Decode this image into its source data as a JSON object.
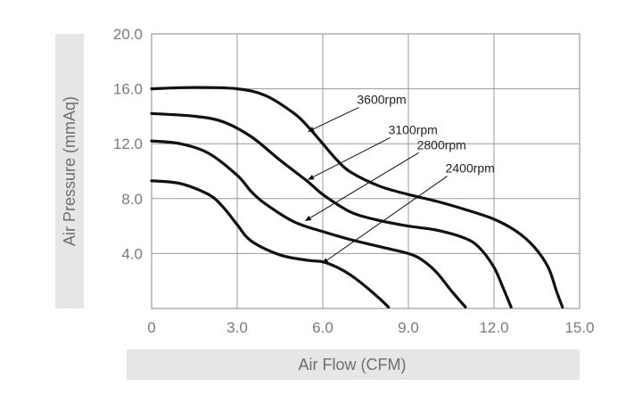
{
  "chart_data": {
    "type": "line",
    "xlabel": "Air Flow (CFM)",
    "ylabel": "Air Pressure (mmAq)",
    "xlim": [
      0,
      15
    ],
    "ylim": [
      0,
      20
    ],
    "x_ticks": [
      0,
      3,
      6,
      9,
      12,
      15
    ],
    "x_tick_labels": [
      "0",
      "3.0",
      "6.0",
      "9.0",
      "12.0",
      "15.0"
    ],
    "y_ticks": [
      4,
      8,
      12,
      16,
      20
    ],
    "y_tick_labels": [
      "4.0",
      "8.0",
      "12.0",
      "16.0",
      "20.0"
    ],
    "grid": true,
    "series": [
      {
        "name": "3600rpm",
        "x": [
          0,
          1.5,
          3.0,
          4.0,
          5.0,
          5.5,
          6.0,
          6.5,
          7.0,
          8.0,
          9.0,
          10.0,
          11.0,
          12.0,
          12.8,
          13.4,
          13.9,
          14.2,
          14.4
        ],
        "y": [
          16.0,
          16.1,
          16.0,
          15.5,
          14.2,
          13.2,
          12.0,
          10.8,
          9.9,
          8.9,
          8.3,
          7.8,
          7.2,
          6.5,
          5.6,
          4.5,
          3.0,
          1.2,
          0.1
        ]
      },
      {
        "name": "3100rpm",
        "x": [
          0,
          1.5,
          2.5,
          3.5,
          4.5,
          5.5,
          6.0,
          7.0,
          8.0,
          9.0,
          10.0,
          11.0,
          11.5,
          12.0,
          12.3,
          12.6
        ],
        "y": [
          14.2,
          14.0,
          13.6,
          12.5,
          10.8,
          9.2,
          8.3,
          7.0,
          6.4,
          6.0,
          5.7,
          5.1,
          4.4,
          3.0,
          1.6,
          0.1
        ]
      },
      {
        "name": "2800rpm",
        "x": [
          0,
          1.0,
          2.0,
          3.0,
          3.5,
          4.0,
          5.0,
          6.0,
          7.0,
          8.0,
          9.0,
          9.5,
          10.0,
          10.5,
          11.0
        ],
        "y": [
          12.2,
          12.0,
          11.3,
          9.7,
          8.5,
          7.6,
          6.3,
          5.6,
          5.0,
          4.5,
          4.0,
          3.5,
          2.6,
          1.3,
          0.1
        ]
      },
      {
        "name": "2400rpm",
        "x": [
          0,
          1.0,
          2.0,
          2.5,
          3.0,
          3.5,
          4.5,
          5.5,
          6.0,
          6.5,
          7.0,
          7.5,
          8.0,
          8.3
        ],
        "y": [
          9.3,
          9.1,
          8.3,
          7.4,
          6.1,
          4.9,
          3.9,
          3.5,
          3.4,
          3.0,
          2.4,
          1.6,
          0.7,
          0.1
        ]
      }
    ],
    "annotations": [
      {
        "series": "3600rpm",
        "text": "3600rpm",
        "text_at": [
          7.2,
          14.9
        ],
        "arrow_to": [
          5.5,
          12.9
        ]
      },
      {
        "series": "3100rpm",
        "text": "3100rpm",
        "text_at": [
          8.3,
          12.7
        ],
        "arrow_to": [
          5.5,
          9.4
        ]
      },
      {
        "series": "2800rpm",
        "text": "2800rpm",
        "text_at": [
          9.3,
          11.6
        ],
        "arrow_to": [
          5.4,
          6.4
        ]
      },
      {
        "series": "2400rpm",
        "text": "2400rpm",
        "text_at": [
          10.3,
          9.9
        ],
        "arrow_to": [
          6.0,
          3.3
        ]
      }
    ]
  },
  "colors": {
    "curve": "#111111",
    "grid": "#9a9a9a",
    "axis_title_band": "#e6e6e6",
    "tick_text": "#7a7a7a",
    "axis_title_text": "#6f6f6f",
    "arrow": "#111111"
  }
}
